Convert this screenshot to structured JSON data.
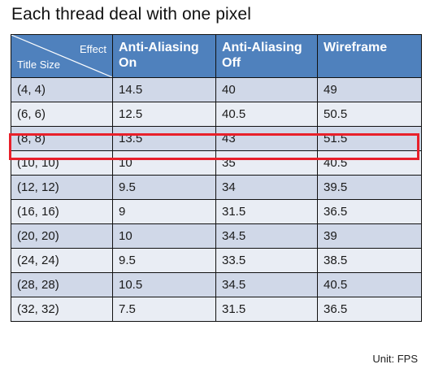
{
  "title": "Each thread deal with one pixel",
  "table": {
    "corner": {
      "top_right": "Effect",
      "bottom_left": "Title Size"
    },
    "columns": [
      "Anti-Aliasing On",
      "Anti-Aliasing Off",
      "Wireframe"
    ],
    "rows": [
      {
        "size": "(4, 4)",
        "values": [
          "14.5",
          "40",
          "49"
        ]
      },
      {
        "size": "(6, 6)",
        "values": [
          "12.5",
          "40.5",
          "50.5"
        ]
      },
      {
        "size": "(8, 8)",
        "values": [
          "13.5",
          "43",
          "51.5"
        ],
        "highlighted": true
      },
      {
        "size": "(10, 10)",
        "values": [
          "10",
          "35",
          "40.5"
        ]
      },
      {
        "size": "(12, 12)",
        "values": [
          "9.5",
          "34",
          "39.5"
        ]
      },
      {
        "size": "(16, 16)",
        "values": [
          "9",
          "31.5",
          "36.5"
        ]
      },
      {
        "size": "(20, 20)",
        "values": [
          "10",
          "34.5",
          "39"
        ]
      },
      {
        "size": "(24, 24)",
        "values": [
          "9.5",
          "33.5",
          "38.5"
        ]
      },
      {
        "size": "(28, 28)",
        "values": [
          "10.5",
          "34.5",
          "40.5"
        ]
      },
      {
        "size": "(32, 32)",
        "values": [
          "7.5",
          "31.5",
          "36.5"
        ]
      }
    ]
  },
  "unit_label": "Unit: FPS",
  "colors": {
    "header": "#4f81bd",
    "row_dark": "#d0d8e8",
    "row_light": "#e9edf4",
    "highlight": "#e8202a"
  }
}
